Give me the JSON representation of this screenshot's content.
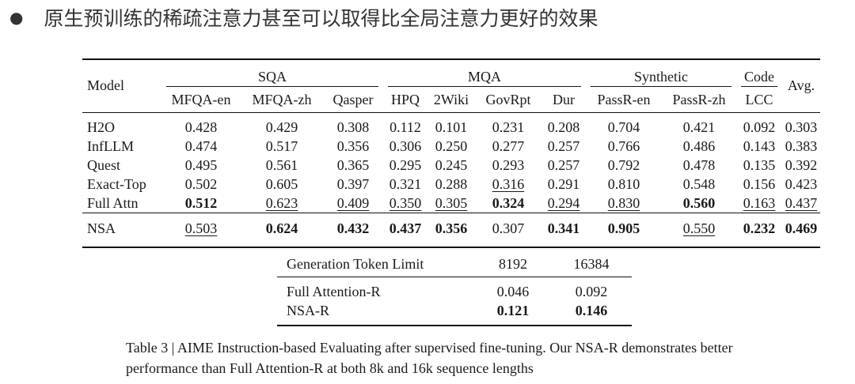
{
  "heading": {
    "bullet": "●",
    "text": "原生预训练的稀疏注意力甚至可以取得比全局注意力更好的效果"
  },
  "main_table": {
    "model_header": "Model",
    "avg_header": "Avg.",
    "groups": [
      {
        "label": "SQA",
        "columns": [
          "MFQA-en",
          "MFQA-zh",
          "Qasper"
        ]
      },
      {
        "label": "MQA",
        "columns": [
          "HPQ",
          "2Wiki",
          "GovRpt",
          "Dur"
        ]
      },
      {
        "label": "Synthetic",
        "columns": [
          "PassR-en",
          "PassR-zh"
        ]
      },
      {
        "label": "Code",
        "columns": [
          "LCC"
        ]
      }
    ],
    "rows": [
      {
        "model": "H2O",
        "values": [
          "0.428",
          "0.429",
          "0.308",
          "0.112",
          "0.101",
          "0.231",
          "0.208",
          "0.704",
          "0.421",
          "0.092",
          "0.303"
        ]
      },
      {
        "model": "InfLLM",
        "values": [
          "0.474",
          "0.517",
          "0.356",
          "0.306",
          "0.250",
          "0.277",
          "0.257",
          "0.766",
          "0.486",
          "0.143",
          "0.383"
        ]
      },
      {
        "model": "Quest",
        "values": [
          "0.495",
          "0.561",
          "0.365",
          "0.295",
          "0.245",
          "0.293",
          "0.257",
          "0.792",
          "0.478",
          "0.135",
          "0.392"
        ]
      },
      {
        "model": "Exact-Top",
        "values": [
          "0.502",
          "0.605",
          "0.397",
          "0.321",
          "0.288",
          "0.316",
          "0.291",
          "0.810",
          "0.548",
          "0.156",
          "0.423"
        ]
      },
      {
        "model": "Full Attn",
        "values": [
          "0.512",
          "0.623",
          "0.409",
          "0.350",
          "0.305",
          "0.324",
          "0.294",
          "0.830",
          "0.560",
          "0.163",
          "0.437"
        ]
      },
      {
        "model": "NSA",
        "values": [
          "0.503",
          "0.624",
          "0.432",
          "0.437",
          "0.356",
          "0.307",
          "0.341",
          "0.905",
          "0.550",
          "0.232",
          "0.469"
        ]
      }
    ]
  },
  "gen_table": {
    "header": [
      "Generation Token Limit",
      "8192",
      "16384"
    ],
    "rows": [
      {
        "model": "Full Attention-R",
        "values": [
          "0.046",
          "0.092"
        ]
      },
      {
        "model": "NSA-R",
        "values": [
          "0.121",
          "0.146"
        ]
      }
    ]
  },
  "caption": {
    "text": "Table 3 | AIME Instruction-based Evaluating after supervised fine-tuning. Our NSA-R demonstrates better performance than Full Attention-R at both 8k and 16k sequence lengths"
  }
}
